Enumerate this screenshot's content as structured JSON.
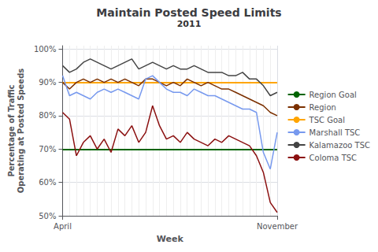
{
  "chart_data": {
    "type": "line",
    "title": "Maintain Posted Speed Limits",
    "subtitle": "2011",
    "xlabel": "Week",
    "ylabel": "Percentage of Traffic\nOperating at Posted Speeds",
    "x": [
      0,
      1,
      2,
      3,
      4,
      5,
      6,
      7,
      8,
      9,
      10,
      11,
      12,
      13,
      14,
      15,
      16,
      17,
      18,
      19,
      20,
      21,
      22,
      23,
      24,
      25,
      26,
      27,
      28,
      29,
      30,
      31
    ],
    "xlim": [
      0,
      31
    ],
    "xticks": [
      {
        "value": 0,
        "label": "April"
      },
      {
        "value": 31,
        "label": "November"
      }
    ],
    "ylim": [
      0.5,
      1.01
    ],
    "yticks": [
      {
        "value": 0.5,
        "label": "50%"
      },
      {
        "value": 0.6,
        "label": "60%"
      },
      {
        "value": 0.7,
        "label": "70%"
      },
      {
        "value": 0.8,
        "label": "80%"
      },
      {
        "value": 0.9,
        "label": "90%"
      },
      {
        "value": 1.0,
        "label": "100%"
      }
    ],
    "grid": true,
    "legend": "right",
    "series": [
      {
        "name": "Region Goal",
        "type": "hline",
        "value": 0.7,
        "color": "#006400"
      },
      {
        "name": "Region",
        "type": "line",
        "color": "#7B3000",
        "values": [
          0.9,
          0.88,
          0.9,
          0.91,
          0.9,
          0.91,
          0.9,
          0.91,
          0.9,
          0.91,
          0.9,
          0.89,
          0.91,
          0.91,
          0.9,
          0.89,
          0.9,
          0.89,
          0.91,
          0.9,
          0.89,
          0.9,
          0.89,
          0.88,
          0.88,
          0.87,
          0.86,
          0.85,
          0.84,
          0.83,
          0.81,
          0.8
        ]
      },
      {
        "name": "TSC Goal",
        "type": "hline",
        "value": 0.9,
        "color": "#FFA500"
      },
      {
        "name": "Marshall TSC",
        "type": "line",
        "color": "#7799EE",
        "values": [
          0.92,
          0.86,
          0.87,
          0.86,
          0.85,
          0.87,
          0.88,
          0.87,
          0.88,
          0.87,
          0.86,
          0.85,
          0.91,
          0.92,
          0.9,
          0.88,
          0.87,
          0.87,
          0.86,
          0.88,
          0.87,
          0.86,
          0.86,
          0.85,
          0.84,
          0.83,
          0.82,
          0.82,
          0.81,
          0.69,
          0.64,
          0.75
        ]
      },
      {
        "name": "Kalamazoo TSC",
        "type": "line",
        "color": "#444444",
        "values": [
          0.95,
          0.93,
          0.94,
          0.96,
          0.97,
          0.96,
          0.95,
          0.94,
          0.95,
          0.96,
          0.97,
          0.94,
          0.95,
          0.96,
          0.95,
          0.94,
          0.95,
          0.94,
          0.94,
          0.95,
          0.94,
          0.93,
          0.93,
          0.93,
          0.92,
          0.92,
          0.93,
          0.91,
          0.91,
          0.89,
          0.86,
          0.87
        ]
      },
      {
        "name": "Coloma TSC",
        "type": "line",
        "color": "#8B1010",
        "values": [
          0.81,
          0.79,
          0.68,
          0.72,
          0.74,
          0.7,
          0.73,
          0.69,
          0.76,
          0.74,
          0.77,
          0.72,
          0.75,
          0.83,
          0.77,
          0.73,
          0.74,
          0.72,
          0.75,
          0.73,
          0.72,
          0.71,
          0.73,
          0.72,
          0.74,
          0.73,
          0.72,
          0.71,
          0.68,
          0.63,
          0.54,
          0.51
        ]
      }
    ]
  }
}
